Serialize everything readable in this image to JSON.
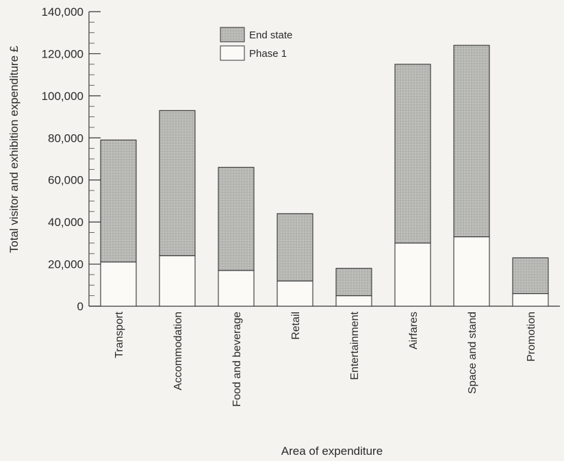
{
  "chart_data": {
    "type": "bar",
    "stacked": true,
    "categories": [
      "Transport",
      "Accommodation",
      "Food and beverage",
      "Retail",
      "Entertainment",
      "Airfares",
      "Space and stand",
      "Promotion"
    ],
    "series": [
      {
        "name": "Phase 1",
        "values": [
          21000,
          24000,
          17000,
          12000,
          5000,
          30000,
          33000,
          6000
        ],
        "color": "#fbfaf7"
      },
      {
        "name": "End state",
        "values": [
          58000,
          69000,
          49000,
          32000,
          13000,
          85000,
          91000,
          17000
        ],
        "color": "#b9b9b6"
      }
    ],
    "yticks": [
      "0",
      "20,000",
      "40,000",
      "60,000",
      "80,000",
      "100,000",
      "120,000",
      "140,000"
    ],
    "ylim": [
      0,
      140000
    ],
    "xlabel": "Area of expenditure",
    "ylabel": "Total visitor and exhibition expenditure £",
    "legend": {
      "placement": "top-center",
      "items": [
        "End state",
        "Phase 1"
      ]
    },
    "grid": false
  }
}
